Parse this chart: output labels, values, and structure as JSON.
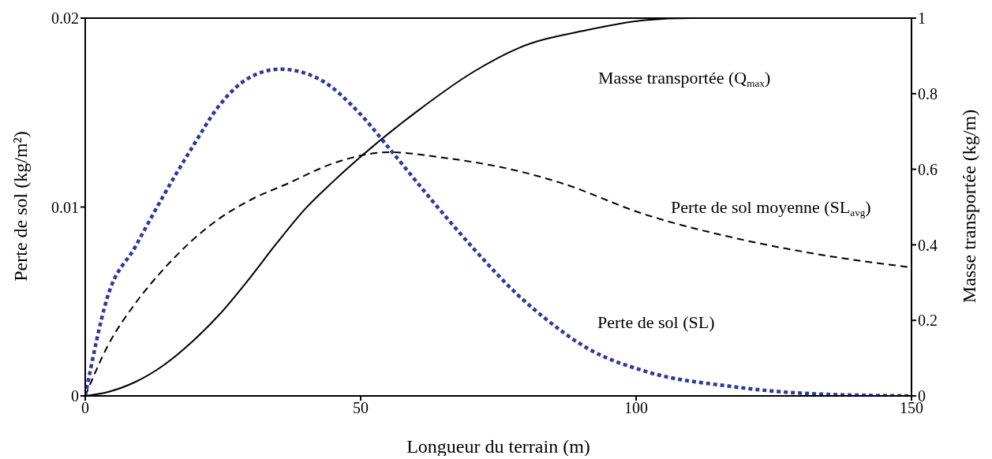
{
  "chart_data": {
    "type": "line",
    "xlabel": "Longueur du terrain (m)",
    "ylabel": "Perte de sol (kg/m²)",
    "y2label": "Masse transportée (kg/m)",
    "xlim": [
      0,
      150
    ],
    "xticks": [
      0,
      50,
      100,
      150
    ],
    "ylim": [
      0,
      0.02
    ],
    "yticks": [
      0,
      0.01,
      0.02
    ],
    "y2lim": [
      0,
      1
    ],
    "y2ticks": [
      0,
      0.2,
      0.4,
      0.6,
      0.8,
      1
    ],
    "legend": false,
    "grid": false,
    "marker": "none",
    "series": [
      {
        "name": "Masse transportée (Q$_{max}$)",
        "color": "#000000",
        "axis": "y2",
        "line_style": "solid",
        "x": [
          0,
          4,
          9.1,
          14.2,
          19.3,
          24.4,
          29.5,
          34.7,
          39.8,
          44.9,
          50,
          60.3,
          70.5,
          78.7,
          91.3,
          101.7,
          110,
          150
        ],
        "values": [
          0,
          0.01,
          0.037,
          0.081,
          0.142,
          0.216,
          0.305,
          0.403,
          0.493,
          0.566,
          0.633,
          0.754,
          0.858,
          0.921,
          0.969,
          0.995,
          1,
          1
        ]
      },
      {
        "name": "Perte de sol moyenne (SL$_{avg}$)",
        "color": "#000000",
        "axis": "y",
        "line_style": "dashed",
        "x": [
          0,
          4,
          9.1,
          14.2,
          19.3,
          24.4,
          29.5,
          37.2,
          44.9,
          55.2,
          65.3,
          78.7,
          86.1,
          101.7,
          117.3,
          133,
          150
        ],
        "values": [
          0,
          0.0026,
          0.0049,
          0.0067,
          0.0082,
          0.0094,
          0.0103,
          0.0113,
          0.0123,
          0.0129,
          0.0126,
          0.0119,
          0.0113,
          0.0096,
          0.0084,
          0.0075,
          0.0068
        ]
      },
      {
        "name": "Perte de sol (SL)",
        "color": "#2e3a9a",
        "axis": "y",
        "line_style": "dotted",
        "x": [
          0,
          4,
          9.1,
          14.2,
          19.3,
          24.4,
          29.5,
          35.4,
          42.3,
          50,
          55.2,
          62.8,
          70.5,
          78.7,
          83.5,
          91.3,
          101.7,
          117.3,
          133,
          150
        ],
        "values": [
          0,
          0.0052,
          0.0079,
          0.0106,
          0.0131,
          0.0154,
          0.0168,
          0.0173,
          0.0168,
          0.0149,
          0.0131,
          0.0104,
          0.0078,
          0.0053,
          0.0041,
          0.0025,
          0.0013,
          0.0005,
          0.0001,
          0
        ]
      }
    ]
  }
}
